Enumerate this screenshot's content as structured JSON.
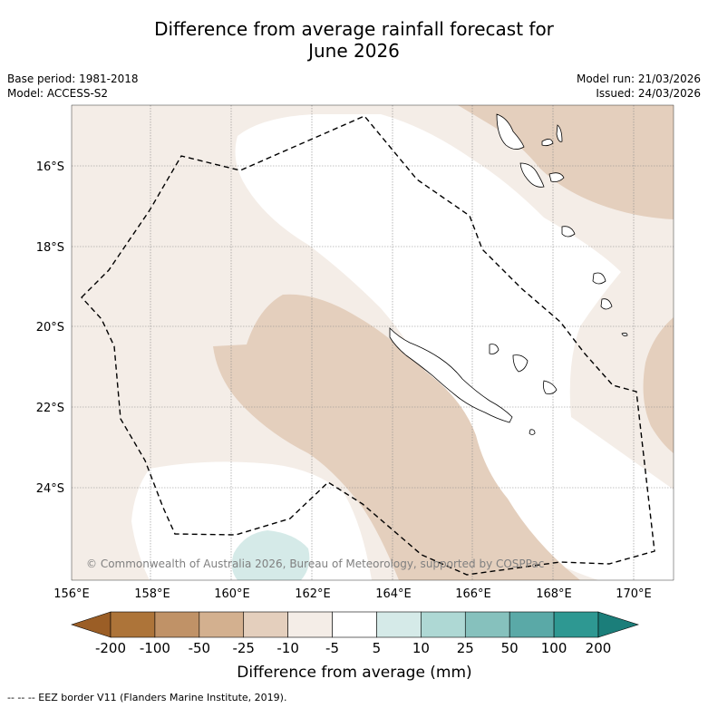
{
  "title": {
    "line1": "Difference from average rainfall forecast for",
    "line2": "June 2026"
  },
  "meta": {
    "base_period": "Base period: 1981-2018",
    "model": "Model: ACCESS-S2",
    "model_run": "Model run: 21/03/2026",
    "issued": "Issued: 24/03/2026"
  },
  "axes": {
    "lon_labels": [
      "156°E",
      "158°E",
      "160°E",
      "162°E",
      "164°E",
      "166°E",
      "168°E",
      "170°E"
    ],
    "lat_labels": [
      "16°S",
      "18°S",
      "20°S",
      "22°S",
      "24°S"
    ]
  },
  "copyright": "© Commonwealth of Australia 2026, Bureau of Meteorology, supported by COSPPac",
  "colorbar": {
    "title": "Difference from average (mm)",
    "labels": [
      "-200",
      "-100",
      "-50",
      "-25",
      "-10",
      "-5",
      "5",
      "10",
      "25",
      "50",
      "100",
      "200"
    ],
    "colors": [
      "#ad7439",
      "#c09267",
      "#d3b08f",
      "#e4cfbd",
      "#f4ede7",
      "#ffffff",
      "#d5eae8",
      "#aed8d4",
      "#86c1bd",
      "#5aa9a7",
      "#2e9892"
    ],
    "low_extend_color": "#9b5e26",
    "high_extend_color": "#1b7e7a"
  },
  "footnote": "--  --  -- EEZ border V11 (Flanders Marine Institute, 2019)."
}
